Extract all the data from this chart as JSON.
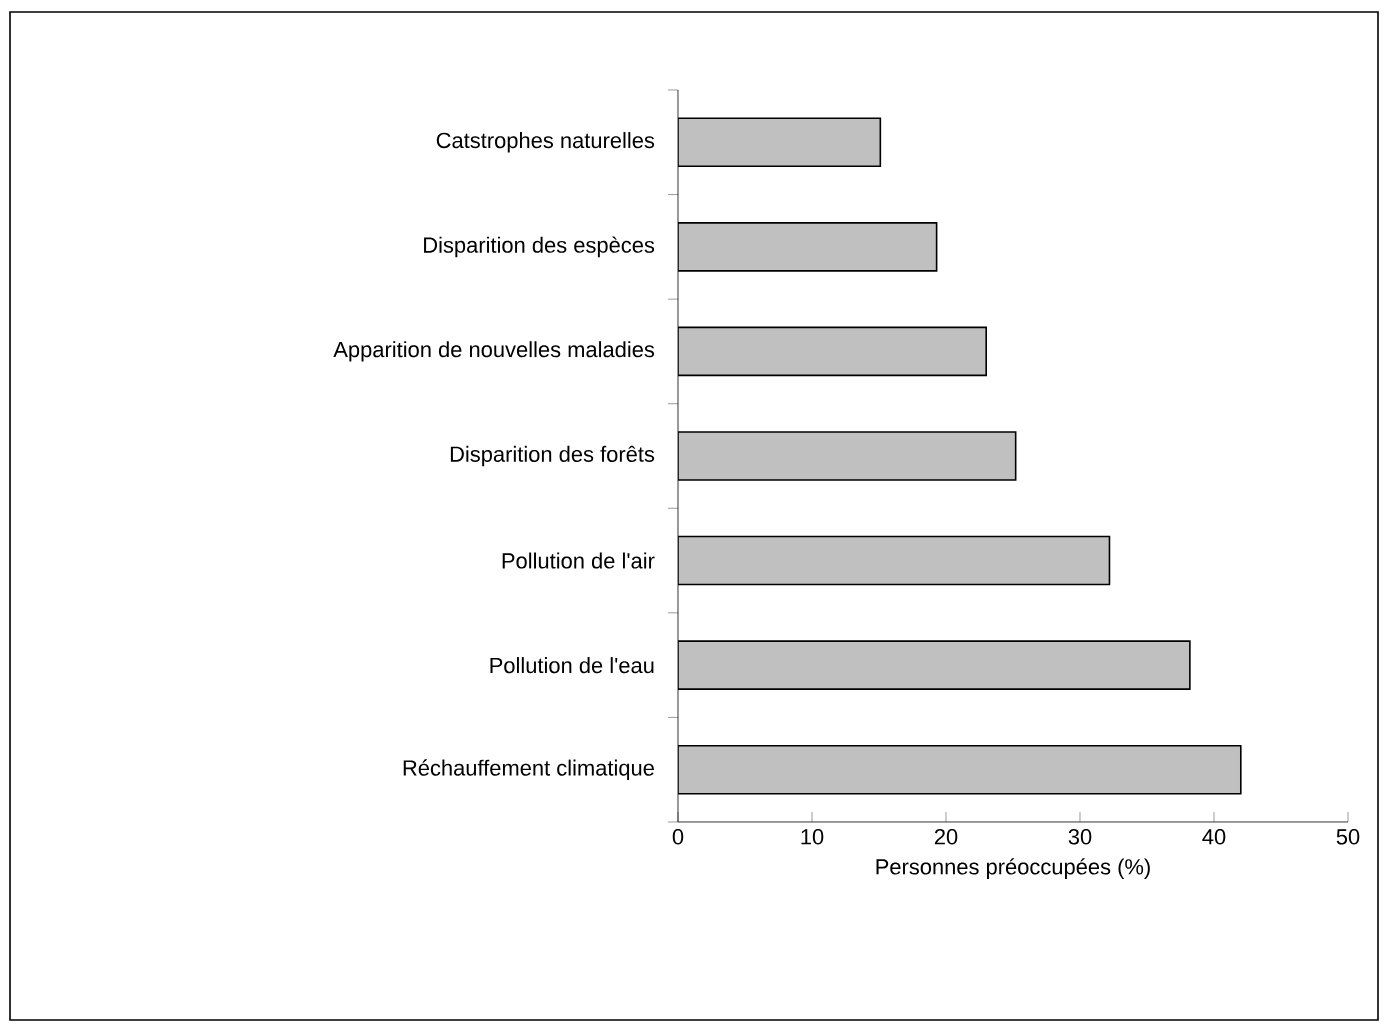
{
  "chart_data": {
    "type": "bar",
    "orientation": "horizontal",
    "categories": [
      "Catstrophes naturelles",
      "Disparition des espèces",
      "Apparition de nouvelles maladies",
      "Disparition des forêts",
      "Pollution de l'air",
      "Pollution de l'eau",
      "Réchauffement climatique"
    ],
    "values": [
      15.1,
      19.3,
      23,
      25.2,
      32.2,
      38.2,
      42
    ],
    "color": "#c0c0c0",
    "xlabel": "Personnes préoccupées (%)",
    "xlim": [
      0,
      50
    ],
    "xticks": [
      0,
      10,
      20,
      30,
      40,
      50
    ],
    "grid": false
  }
}
